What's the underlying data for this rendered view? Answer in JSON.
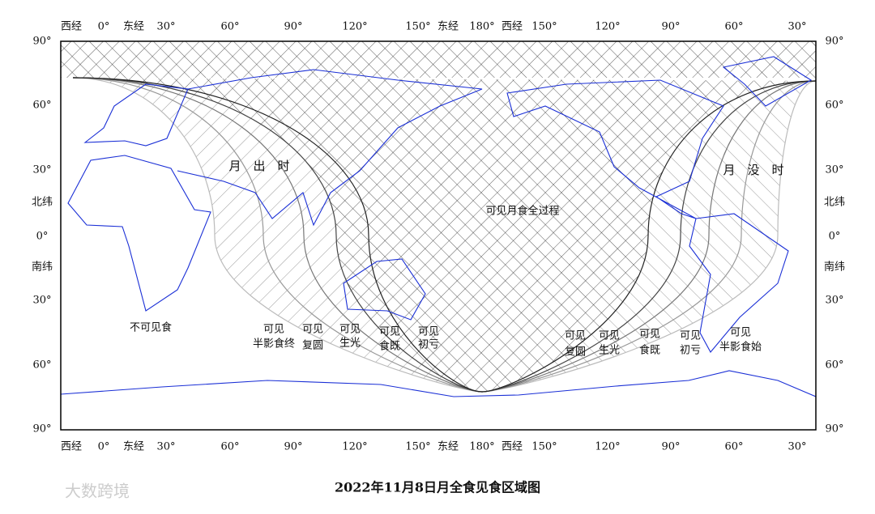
{
  "title": "2022年11月8日月全食见食区域图",
  "watermark": "大数跨境",
  "top_axis": [
    "西经",
    "0°",
    "东经",
    "30°",
    "60°",
    "90°",
    "120°",
    "150°",
    "东经",
    "180°",
    "西经",
    "150°",
    "120°",
    "90°",
    "60°",
    "30°"
  ],
  "bottom_axis": [
    "西经",
    "0°",
    "东经",
    "30°",
    "60°",
    "90°",
    "120°",
    "150°",
    "东经",
    "180°",
    "西经",
    "150°",
    "120°",
    "90°",
    "60°",
    "30°"
  ],
  "left_axis": [
    "90°",
    "60°",
    "30°",
    "北纬",
    "0°",
    "南纬",
    "30°",
    "60°",
    "90°"
  ],
  "right_axis": [
    "90°",
    "60°",
    "30°",
    "北纬",
    "0°",
    "南纬",
    "30°",
    "60°",
    "90°"
  ],
  "moonrise_label": "月　出　时",
  "moonset_label": "月　没　时",
  "full_view_label": "可见月食全过程",
  "no_view_label": "不可见食",
  "region_labels": [
    [
      "可见",
      "半影食终"
    ],
    [
      "可见",
      "复圆"
    ],
    [
      "可见",
      "生光"
    ],
    [
      "可见",
      "食既"
    ],
    [
      "可见",
      "初亏"
    ],
    [
      "可见",
      "复圆"
    ],
    [
      "可见",
      "生光"
    ],
    [
      "可见",
      "食既"
    ],
    [
      "可见",
      "初亏"
    ],
    [
      "可见",
      "半影食始"
    ]
  ]
}
